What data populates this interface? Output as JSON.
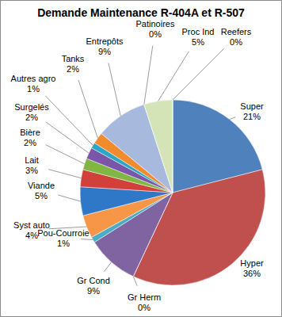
{
  "chart_data": {
    "type": "pie",
    "title": "Demande Maintenance R-404A et R-507",
    "categories": [
      "Super",
      "Hyper",
      "Gr Herm",
      "Gr Cond",
      "Pou-Courroie",
      "Syst auto",
      "Viande",
      "Lait",
      "Bière",
      "Surgelés",
      "Autres agro",
      "Tanks",
      "Entrepôts",
      "Patinoires",
      "Proc Ind",
      "Reefers"
    ],
    "values": [
      21,
      36,
      0,
      9,
      1,
      4,
      5,
      3,
      2,
      2,
      1,
      2,
      9,
      0,
      5,
      0
    ],
    "value_labels": [
      "21%",
      "36%",
      "0%",
      "9%",
      "1%",
      "4%",
      "5%",
      "3%",
      "2%",
      "2%",
      "1%",
      "2%",
      "9%",
      "0%",
      "5%",
      "0%"
    ],
    "colors": [
      "#4f81bd",
      "#c0504d",
      "#9bbb59",
      "#8064a2",
      "#4bacc6",
      "#f79646",
      "#2f78c8",
      "#d2403c",
      "#7fb742",
      "#7b55a8",
      "#2aa7c4",
      "#f28a2e",
      "#a7b9dd",
      "#e5a9a8",
      "#d4e4b6",
      "#c9b8dc"
    ],
    "data_labels": true
  }
}
